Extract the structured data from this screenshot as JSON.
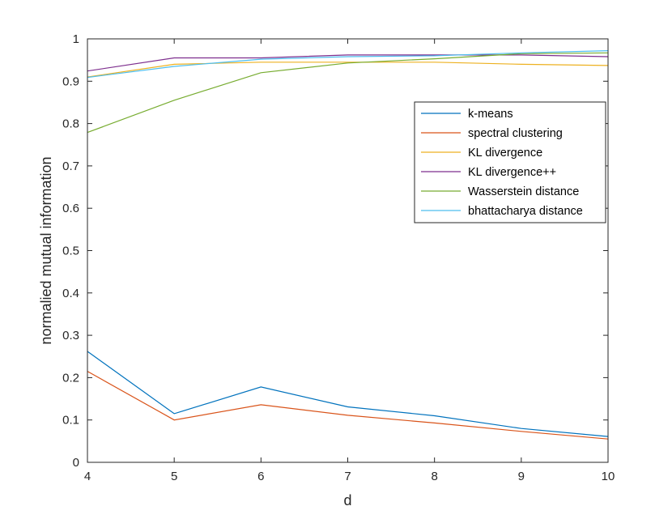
{
  "chart_data": {
    "type": "line",
    "xlabel": "d",
    "ylabel": "normalied mutual information",
    "xlim": [
      4,
      10
    ],
    "ylim": [
      0,
      1
    ],
    "x": [
      4,
      5,
      6,
      7,
      8,
      9,
      10
    ],
    "xticks": [
      "4",
      "5",
      "6",
      "7",
      "8",
      "9",
      "10"
    ],
    "yticks": [
      "0",
      "0.1",
      "0.2",
      "0.3",
      "0.4",
      "0.5",
      "0.6",
      "0.7",
      "0.8",
      "0.9",
      "1"
    ],
    "grid": false,
    "legend_position": "upper-right",
    "series": [
      {
        "name": "k-means",
        "color": "#0072BD",
        "values": [
          0.262,
          0.115,
          0.178,
          0.131,
          0.11,
          0.08,
          0.061
        ]
      },
      {
        "name": "spectral clustering",
        "color": "#D95319",
        "values": [
          0.215,
          0.1,
          0.136,
          0.111,
          0.093,
          0.073,
          0.055
        ]
      },
      {
        "name": "KL divergence",
        "color": "#EDB120",
        "values": [
          0.91,
          0.94,
          0.945,
          0.945,
          0.945,
          0.94,
          0.937
        ]
      },
      {
        "name": "KL divergence++",
        "color": "#7E2F8E",
        "values": [
          0.924,
          0.955,
          0.955,
          0.962,
          0.962,
          0.962,
          0.958
        ]
      },
      {
        "name": "Wasserstein distance",
        "color": "#77AC30",
        "values": [
          0.779,
          0.855,
          0.92,
          0.943,
          0.953,
          0.965,
          0.967
        ]
      },
      {
        "name": "bhattacharya distance",
        "color": "#4DBEEE",
        "values": [
          0.909,
          0.935,
          0.952,
          0.958,
          0.96,
          0.967,
          0.972
        ]
      }
    ]
  }
}
